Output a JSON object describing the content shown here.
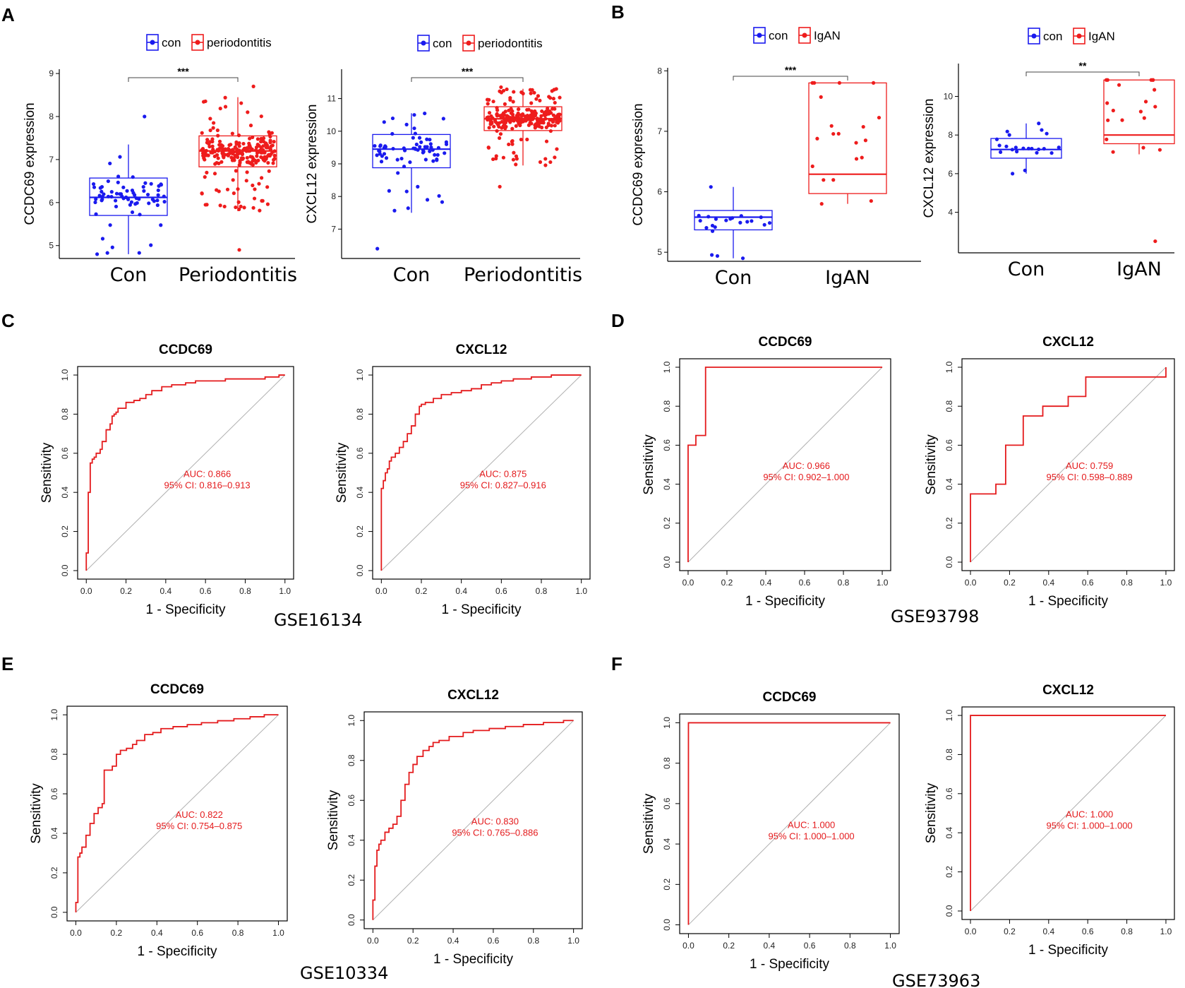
{
  "colors": {
    "con": "#1a1aee",
    "disease": "#ee1c1c",
    "roc": "#e41a1c",
    "diag": "#b0b0b0"
  },
  "panel_labels": [
    "A",
    "B",
    "C",
    "D",
    "E",
    "F"
  ],
  "dataset_labels": [
    "GSE16134",
    "GSE93798",
    "GSE10334",
    "GSE73963"
  ],
  "chart_data": [
    {
      "id": "A1",
      "panel": "A",
      "type": "box",
      "legend": [
        "con",
        "periodontitis"
      ],
      "categories": [
        "Con",
        "Periodontitis"
      ],
      "ylabel": "CCDC69 expression",
      "ylim": [
        4.7,
        9.1
      ],
      "yticks": [
        5,
        6,
        7,
        8,
        9
      ],
      "significance": "***",
      "boxes": [
        {
          "group": "con",
          "q1": 5.7,
          "median": 6.12,
          "q3": 6.57,
          "wmin": 4.8,
          "wmax": 7.35,
          "n": 70,
          "seed": 11,
          "spread": [
            4.8,
            8.0
          ]
        },
        {
          "group": "periodontitis",
          "q1": 6.83,
          "median": 7.2,
          "q3": 7.55,
          "wmin": 5.8,
          "wmax": 8.45,
          "n": 240,
          "seed": 23,
          "spread": [
            4.9,
            8.7
          ]
        }
      ]
    },
    {
      "id": "A2",
      "panel": "A",
      "type": "box",
      "legend": [
        "con",
        "periodontitis"
      ],
      "categories": [
        "Con",
        "Periodontitis"
      ],
      "ylabel": "CXCL12 expression",
      "ylim": [
        6.1,
        11.9
      ],
      "yticks": [
        7,
        8,
        9,
        10,
        11
      ],
      "significance": "***",
      "boxes": [
        {
          "group": "con",
          "q1": 8.88,
          "median": 9.45,
          "q3": 9.9,
          "wmin": 7.5,
          "wmax": 10.55,
          "n": 70,
          "seed": 37,
          "spread": [
            6.4,
            10.5
          ]
        },
        {
          "group": "periodontitis",
          "q1": 10.02,
          "median": 10.38,
          "q3": 10.75,
          "wmin": 8.95,
          "wmax": 11.3,
          "n": 240,
          "seed": 41,
          "spread": [
            8.3,
            11.35
          ]
        }
      ]
    },
    {
      "id": "B1",
      "panel": "B",
      "type": "box",
      "legend": [
        "con",
        "IgAN"
      ],
      "categories": [
        "Con",
        "IgAN"
      ],
      "ylabel": "CCDC69 expression",
      "ylim": [
        4.85,
        8.05
      ],
      "yticks": [
        5,
        6,
        7,
        8
      ],
      "significance": "***",
      "boxes": [
        {
          "group": "con",
          "q1": 5.37,
          "median": 5.58,
          "q3": 5.69,
          "wmin": 4.9,
          "wmax": 6.08,
          "n": 22,
          "seed": 53,
          "spread": [
            4.9,
            6.08
          ]
        },
        {
          "group": "IgAN",
          "q1": 5.97,
          "median": 6.29,
          "q3": 7.8,
          "wmin": 5.8,
          "wmax": 7.8,
          "n": 20,
          "seed": 67,
          "spread": [
            5.8,
            7.8
          ]
        }
      ]
    },
    {
      "id": "B2",
      "panel": "B",
      "type": "box",
      "legend": [
        "con",
        "IgAN"
      ],
      "categories": [
        "Con",
        "IgAN"
      ],
      "ylabel": "CXCL12 expression",
      "ylim": [
        1.9,
        11.7
      ],
      "yticks": [
        4,
        6,
        8,
        10
      ],
      "significance": "**",
      "boxes": [
        {
          "group": "con",
          "q1": 6.8,
          "median": 7.25,
          "q3": 7.82,
          "wmin": 6.0,
          "wmax": 8.6,
          "n": 22,
          "seed": 71,
          "spread": [
            6.0,
            8.6
          ]
        },
        {
          "group": "IgAN",
          "q1": 7.55,
          "median": 8.0,
          "q3": 10.85,
          "wmin": 7.0,
          "wmax": 10.85,
          "n": 20,
          "seed": 83,
          "spread": [
            2.5,
            10.85
          ]
        }
      ]
    },
    {
      "id": "C1",
      "panel": "C",
      "type": "roc",
      "title": "CCDC69",
      "xlabel": "1 - Specificity",
      "ylabel": "Sensitivity",
      "auc": "AUC: 0.866",
      "ci": "95% CI: 0.816–0.913",
      "fpr": [
        0,
        0,
        0.01,
        0.01,
        0.02,
        0.02,
        0.03,
        0.04,
        0.05,
        0.07,
        0.08,
        0.1,
        0.12,
        0.13,
        0.14,
        0.15,
        0.16,
        0.2,
        0.24,
        0.27,
        0.3,
        0.33,
        0.38,
        0.43,
        0.5,
        0.55,
        0.62,
        0.7,
        0.8,
        0.9,
        0.97,
        1.0
      ],
      "tpr": [
        0,
        0.05,
        0.09,
        0.35,
        0.4,
        0.5,
        0.55,
        0.57,
        0.58,
        0.6,
        0.62,
        0.66,
        0.72,
        0.75,
        0.79,
        0.8,
        0.81,
        0.83,
        0.86,
        0.87,
        0.88,
        0.9,
        0.92,
        0.94,
        0.95,
        0.96,
        0.97,
        0.97,
        0.98,
        0.98,
        0.99,
        1.0
      ]
    },
    {
      "id": "C2",
      "panel": "C",
      "type": "roc",
      "title": "CXCL12",
      "xlabel": "1 - Specificity",
      "ylabel": "Sensitivity",
      "auc": "AUC: 0.875",
      "ci": "95% CI: 0.827–0.916",
      "fpr": [
        0,
        0,
        0.01,
        0.02,
        0.03,
        0.04,
        0.05,
        0.07,
        0.09,
        0.11,
        0.13,
        0.15,
        0.17,
        0.19,
        0.2,
        0.22,
        0.26,
        0.3,
        0.35,
        0.4,
        0.45,
        0.5,
        0.55,
        0.6,
        0.66,
        0.75,
        0.85,
        0.93,
        1.0
      ],
      "tpr": [
        0,
        0.4,
        0.42,
        0.46,
        0.5,
        0.52,
        0.56,
        0.58,
        0.6,
        0.63,
        0.66,
        0.7,
        0.74,
        0.8,
        0.84,
        0.85,
        0.86,
        0.88,
        0.9,
        0.91,
        0.92,
        0.93,
        0.95,
        0.96,
        0.97,
        0.98,
        0.99,
        1.0,
        1.0
      ]
    },
    {
      "id": "D1",
      "panel": "D",
      "type": "roc",
      "title": "CCDC69",
      "xlabel": "1 - Specificity",
      "ylabel": "Sensitivity",
      "auc": "AUC: 0.966",
      "ci": "95% CI: 0.902–1.000",
      "fpr": [
        0,
        0,
        0.04,
        0.04,
        0.09,
        0.09,
        1.0
      ],
      "tpr": [
        0,
        0.6,
        0.6,
        0.65,
        0.65,
        1.0,
        1.0
      ]
    },
    {
      "id": "D2",
      "panel": "D",
      "type": "roc",
      "title": "CXCL12",
      "xlabel": "1 - Specificity",
      "ylabel": "Sensitivity",
      "auc": "AUC: 0.759",
      "ci": "95% CI: 0.598–0.889",
      "fpr": [
        0,
        0,
        0.13,
        0.13,
        0.18,
        0.18,
        0.27,
        0.27,
        0.37,
        0.37,
        0.5,
        0.5,
        0.59,
        0.59,
        1.0,
        1.0
      ],
      "tpr": [
        0,
        0.35,
        0.35,
        0.4,
        0.4,
        0.6,
        0.6,
        0.75,
        0.75,
        0.8,
        0.8,
        0.85,
        0.85,
        0.95,
        0.95,
        1.0
      ]
    },
    {
      "id": "E1",
      "panel": "E",
      "type": "roc",
      "title": "CCDC69",
      "xlabel": "1 - Specificity",
      "ylabel": "Sensitivity",
      "auc": "AUC: 0.822",
      "ci": "95% CI: 0.754–0.875",
      "fpr": [
        0,
        0.01,
        0.02,
        0.03,
        0.05,
        0.07,
        0.09,
        0.11,
        0.13,
        0.14,
        0.17,
        0.18,
        0.2,
        0.22,
        0.25,
        0.28,
        0.3,
        0.34,
        0.38,
        0.42,
        0.48,
        0.55,
        0.62,
        0.7,
        0.78,
        0.86,
        0.93,
        0.98,
        1.0
      ],
      "tpr": [
        0,
        0.05,
        0.28,
        0.3,
        0.33,
        0.39,
        0.45,
        0.5,
        0.53,
        0.55,
        0.72,
        0.72,
        0.74,
        0.8,
        0.82,
        0.83,
        0.85,
        0.87,
        0.9,
        0.91,
        0.93,
        0.94,
        0.95,
        0.96,
        0.97,
        0.98,
        0.99,
        1.0,
        1.0
      ]
    },
    {
      "id": "E2",
      "panel": "E",
      "type": "roc",
      "title": "CXCL12",
      "xlabel": "1 - Specificity",
      "ylabel": "Sensitivity",
      "auc": "AUC: 0.830",
      "ci": "95% CI: 0.765–0.886",
      "fpr": [
        0,
        0.01,
        0.02,
        0.03,
        0.04,
        0.06,
        0.08,
        0.1,
        0.12,
        0.14,
        0.16,
        0.18,
        0.2,
        0.22,
        0.25,
        0.28,
        0.3,
        0.33,
        0.38,
        0.45,
        0.5,
        0.58,
        0.66,
        0.75,
        0.85,
        0.95,
        1.0
      ],
      "tpr": [
        0,
        0.1,
        0.27,
        0.35,
        0.38,
        0.4,
        0.44,
        0.46,
        0.48,
        0.52,
        0.6,
        0.68,
        0.74,
        0.78,
        0.82,
        0.85,
        0.87,
        0.89,
        0.9,
        0.92,
        0.94,
        0.95,
        0.96,
        0.97,
        0.98,
        0.99,
        1.0
      ]
    },
    {
      "id": "F1",
      "panel": "F",
      "type": "roc",
      "title": "CCDC69",
      "xlabel": "1 - Specificity",
      "ylabel": "Sensitivity",
      "auc": "AUC: 1.000",
      "ci": "95% CI: 1.000–1.000",
      "fpr": [
        0,
        0,
        1.0
      ],
      "tpr": [
        0,
        1.0,
        1.0
      ]
    },
    {
      "id": "F2",
      "panel": "F",
      "type": "roc",
      "title": "CXCL12",
      "xlabel": "1 - Specificity",
      "ylabel": "Sensitivity",
      "auc": "AUC: 1.000",
      "ci": "95% CI: 1.000–1.000",
      "fpr": [
        0,
        0,
        1.0
      ],
      "tpr": [
        0,
        1.0,
        1.0
      ]
    }
  ]
}
